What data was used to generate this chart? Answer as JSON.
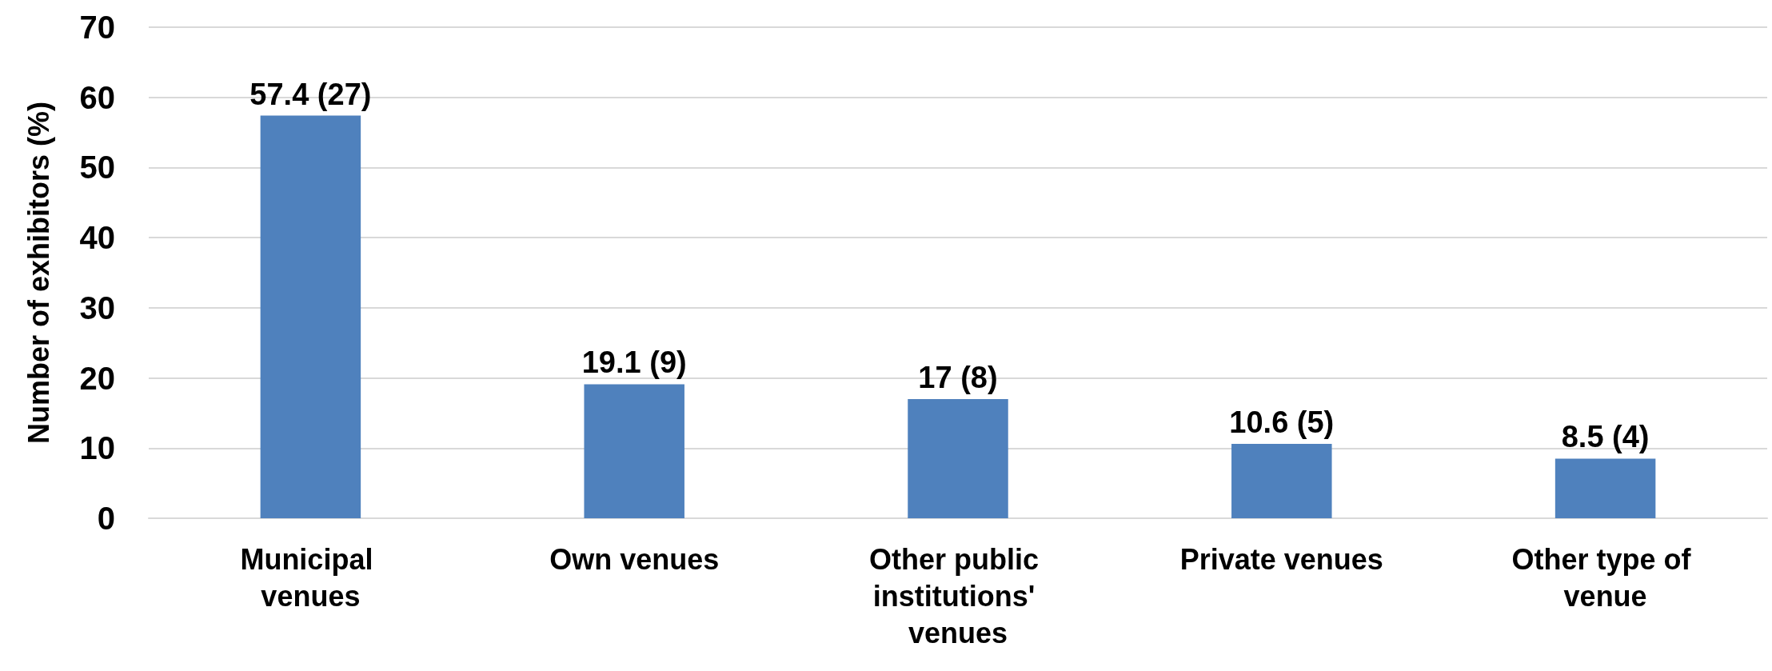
{
  "chart_data": {
    "type": "bar",
    "ylabel": "Number of exhibitors (%)",
    "categories": [
      "Municipal venues",
      "Own venues",
      "Other public institutions' venues",
      "Private venues",
      "Other type of venue"
    ],
    "values": [
      57.4,
      19.1,
      17,
      10.6,
      8.5
    ],
    "value_labels": [
      "57.4 (27)",
      "19.1 (9)",
      "17 (8)",
      "10.6 (5)",
      "8.5 (4)"
    ],
    "color": "#4f81bd",
    "ylim": [
      0,
      70
    ],
    "yticks": [
      0,
      10,
      20,
      30,
      40,
      50,
      60,
      70
    ],
    "grid": "y"
  }
}
